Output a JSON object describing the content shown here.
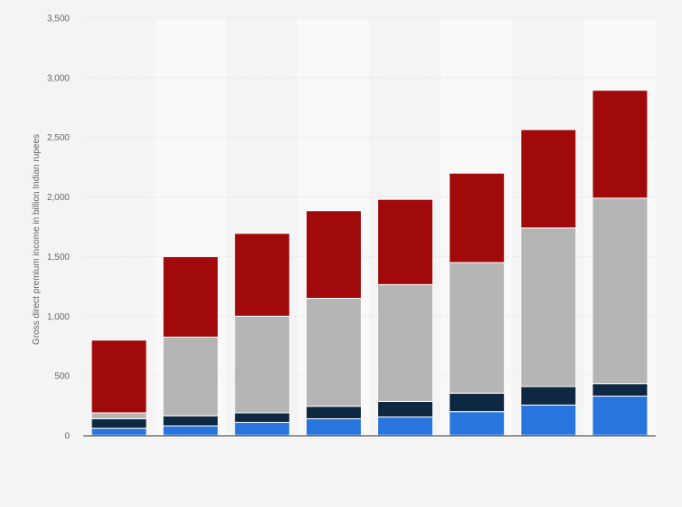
{
  "chart_data": {
    "type": "bar",
    "stacked": true,
    "title": "",
    "xlabel": "",
    "ylabel": "Gross direct premium income in billion Indian rupees",
    "ylim": [
      0,
      3500
    ],
    "yticks": [
      0,
      500,
      1000,
      1500,
      2000,
      2500,
      3000,
      3500
    ],
    "ytick_labels": [
      "0",
      "500",
      "1,000",
      "1,500",
      "2,000",
      "2,500",
      "3,000",
      "3,500"
    ],
    "grid": true,
    "legend": "none",
    "categories": [
      "",
      "",
      "",
      "",
      "",
      "",
      "",
      ""
    ],
    "series": [
      {
        "color": "#2876dd",
        "values": [
          60,
          80,
          110,
          140,
          155,
          200,
          255,
          330
        ]
      },
      {
        "color": "#0e2841",
        "values": [
          80,
          85,
          80,
          105,
          130,
          155,
          155,
          105
        ]
      },
      {
        "color": "#b5b5b5",
        "values": [
          50,
          660,
          810,
          905,
          980,
          1095,
          1330,
          1555
        ]
      },
      {
        "color": "#a10a0a",
        "values": [
          610,
          675,
          695,
          735,
          715,
          750,
          825,
          905
        ]
      }
    ]
  }
}
